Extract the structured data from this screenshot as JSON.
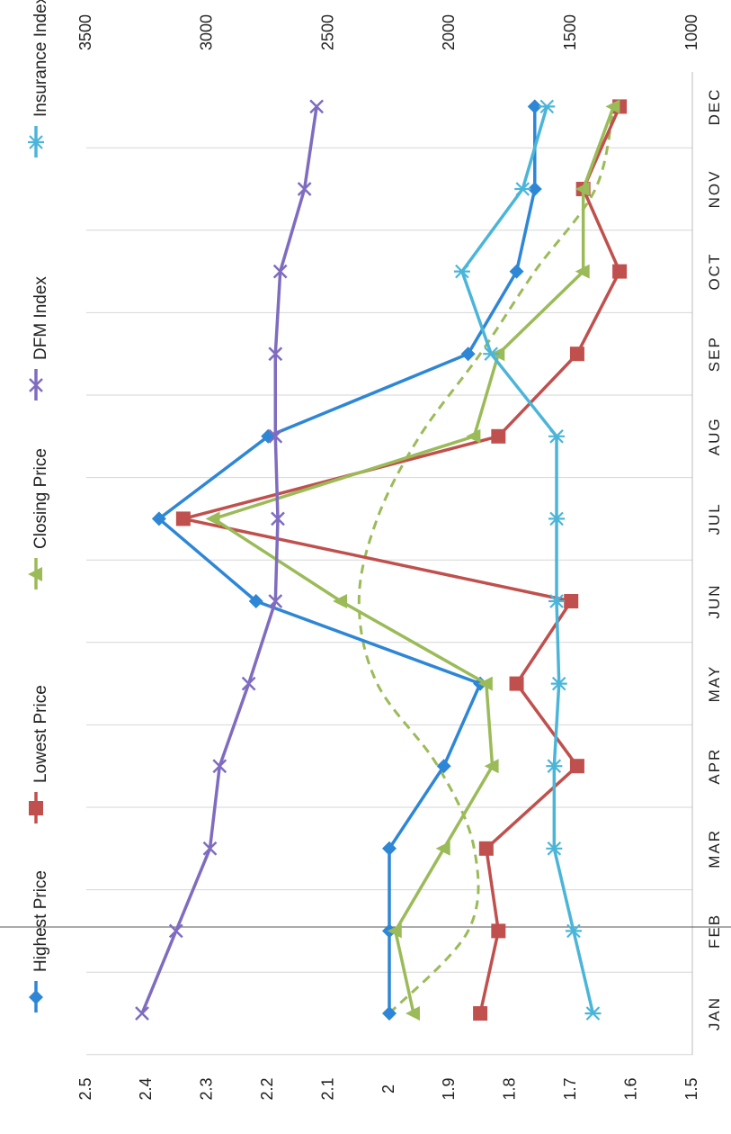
{
  "chart_data": {
    "type": "line",
    "orientation": "rotated-90-clockwise",
    "categories": [
      "JAN",
      "FEB",
      "MAR",
      "APR",
      "MAY",
      "JUN",
      "JUL",
      "AUG",
      "SEP",
      "OCT",
      "NOV",
      "DEC"
    ],
    "primary_axis": {
      "ticks": [
        "1.5",
        "1.6",
        "1.7",
        "1.8",
        "1.9",
        "2",
        "2.1",
        "2.2",
        "2.3",
        "2.4",
        "2.5"
      ],
      "range": [
        1.5,
        2.5
      ]
    },
    "secondary_axis": {
      "ticks": [
        "1000",
        "1500",
        "2000",
        "2500",
        "3000",
        "3500"
      ],
      "range": [
        1000,
        3500
      ]
    },
    "grid": true,
    "legend_position": "top-left",
    "series": [
      {
        "name": "Highest Price",
        "axis": "primary",
        "color": "#2e86d6",
        "marker": "diamond",
        "values": [
          2.0,
          2.0,
          2.0,
          1.91,
          1.85,
          2.22,
          2.38,
          2.2,
          1.87,
          1.79,
          1.76,
          1.76
        ]
      },
      {
        "name": "Lowest Price",
        "axis": "primary",
        "color": "#c0504d",
        "marker": "square",
        "values": [
          1.85,
          1.82,
          1.84,
          1.69,
          1.79,
          1.7,
          2.34,
          1.82,
          1.69,
          1.62,
          1.68,
          1.62
        ]
      },
      {
        "name": "Closing Price",
        "axis": "primary",
        "color": "#9bbb59",
        "marker": "triangle",
        "values": [
          1.96,
          1.99,
          1.91,
          1.83,
          1.84,
          2.08,
          2.29,
          1.86,
          1.82,
          1.68,
          1.68,
          1.63
        ],
        "trendline": {
          "style": "dashed",
          "values": [
            2.0,
            1.87,
            1.86,
            1.92,
            2.02,
            2.05,
            2.02,
            1.95,
            1.85,
            1.76,
            1.66,
            1.63
          ]
        }
      },
      {
        "name": "DFM Index",
        "axis": "secondary",
        "color": "#7f6cc0",
        "marker": "x",
        "values": [
          3270,
          3130,
          2990,
          2950,
          2830,
          2720,
          2710,
          2720,
          2720,
          2700,
          2600,
          2550
        ]
      },
      {
        "name": "Insurance Index",
        "axis": "secondary",
        "color": "#4bb5d9",
        "marker": "asterisk",
        "values": [
          1410,
          1490,
          1570,
          1570,
          1550,
          1560,
          1560,
          1560,
          1830,
          1950,
          1700,
          1600
        ]
      }
    ]
  }
}
